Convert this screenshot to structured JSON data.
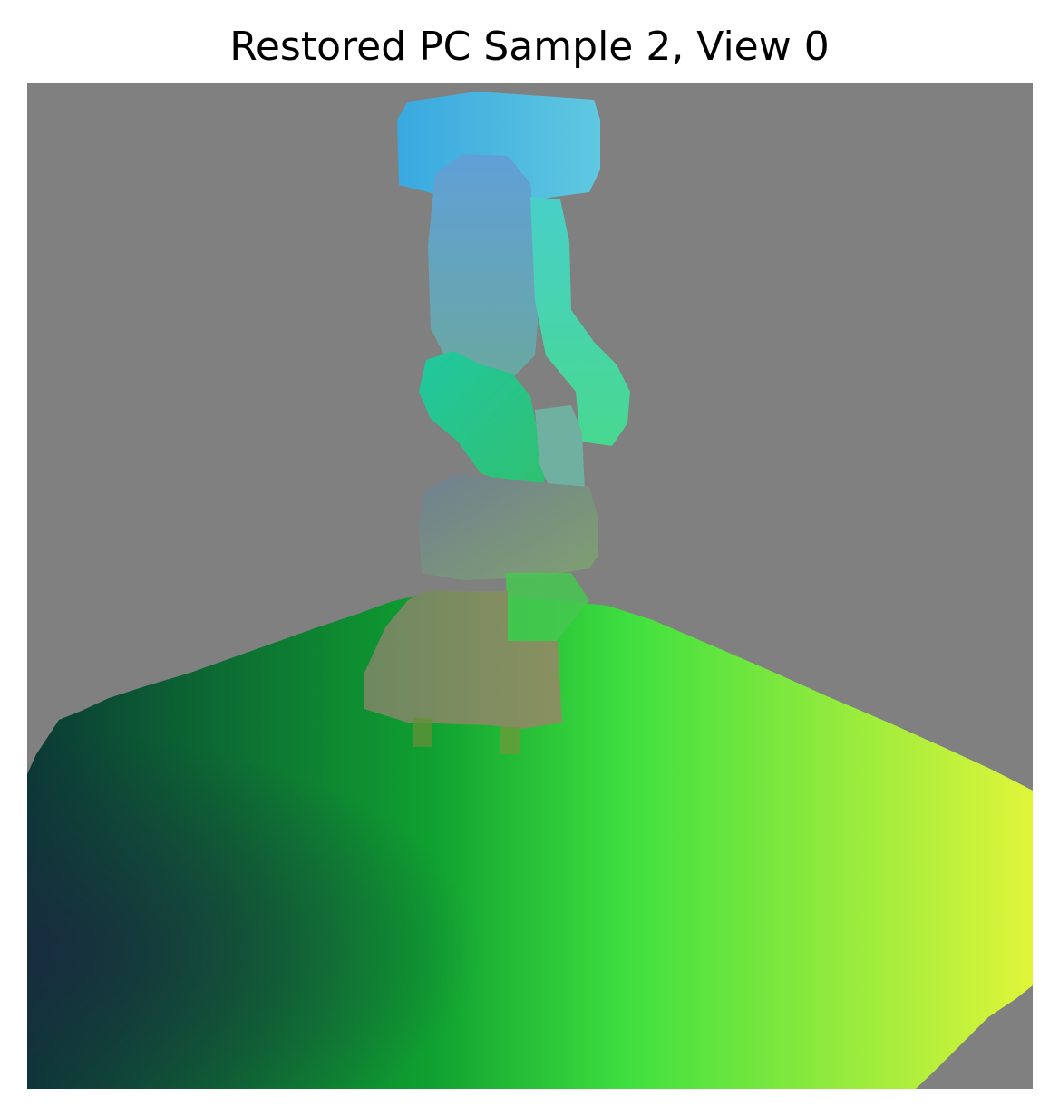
{
  "title": "Restored PC Sample 2, View 0",
  "image": {
    "description_icon": "point-cloud-render",
    "background_color": "#808080",
    "palette": {
      "floor_bottom_left": "#7a0034",
      "floor_top_left": "#0b4030",
      "floor_center_top": "#20c030",
      "floor_top_right": "#dcf53a",
      "floor_bottom_right": "#ff8a30",
      "robot_top": "#40aee0",
      "robot_upper": "#5fa0d0",
      "robot_joint_green": "#2ec890",
      "robot_base": "#7f8f60"
    }
  }
}
